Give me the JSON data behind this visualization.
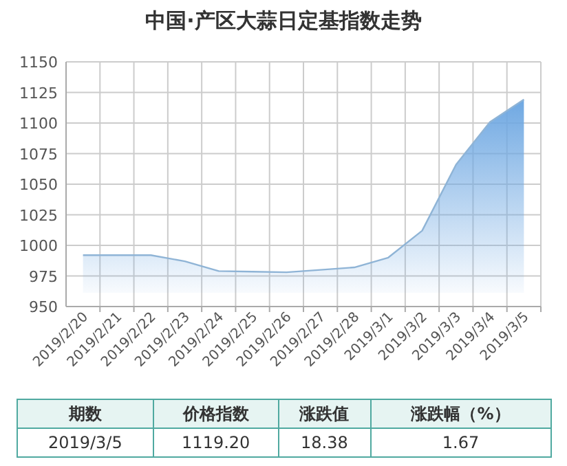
{
  "chart_data": {
    "type": "area",
    "title": "中国·产区大蒜日定基指数走势",
    "categories": [
      "2019/2/20",
      "2019/2/21",
      "2019/2/22",
      "2019/2/23",
      "2019/2/24",
      "2019/2/25",
      "2019/2/26",
      "2019/2/27",
      "2019/2/28",
      "2019/3/1",
      "2019/3/2",
      "2019/3/3",
      "2019/3/4",
      "2019/3/5"
    ],
    "values": [
      992,
      992,
      992,
      987,
      979,
      978.5,
      978,
      980,
      982,
      990,
      1012,
      1066,
      1100.82,
      1119.2
    ],
    "color": "#6fa8e2",
    "ylim": [
      950,
      1150
    ],
    "yticks": [
      950,
      975,
      1000,
      1025,
      1050,
      1075,
      1100,
      1125,
      1150
    ],
    "grid": true,
    "annotations": [
      "期数",
      "价格指数",
      "涨跌值",
      "涨跌幅（%）",
      "2019/3/5",
      "1119.20",
      "18.38",
      "1.67"
    ]
  }
}
